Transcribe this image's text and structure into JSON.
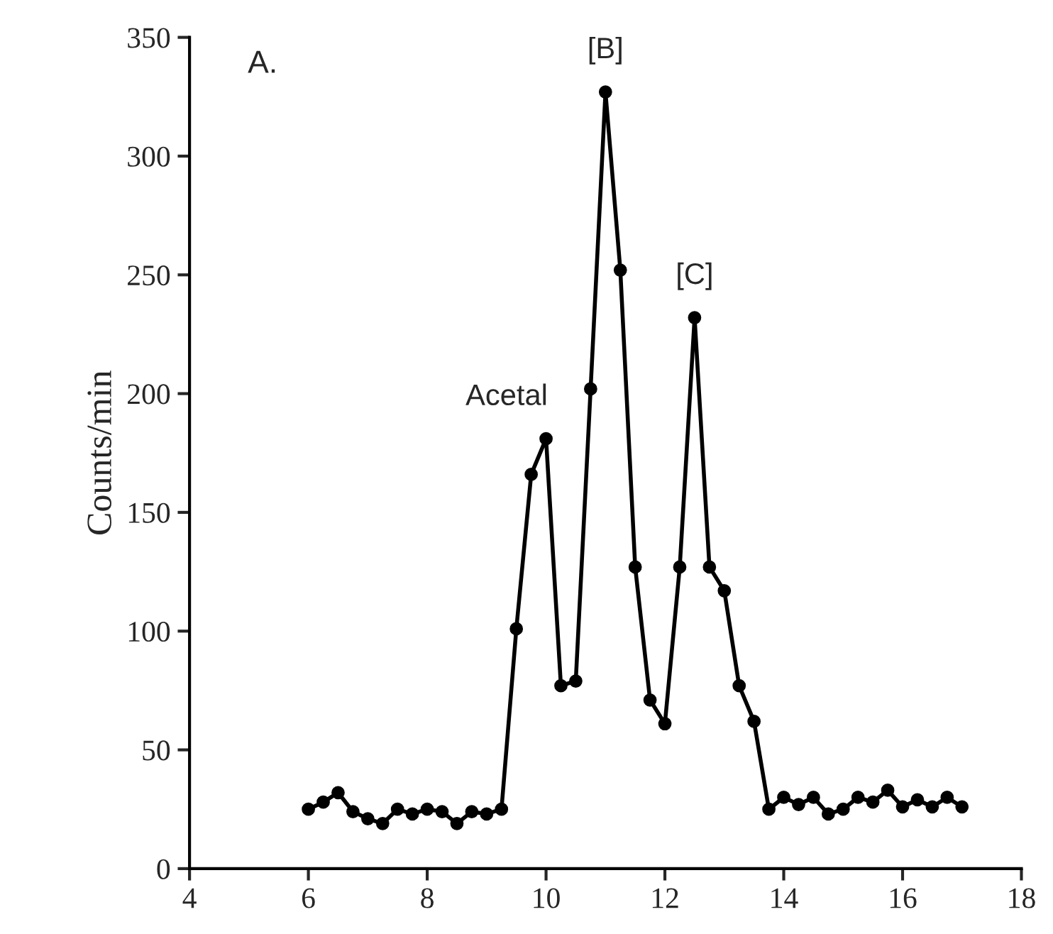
{
  "chart_data": {
    "type": "line",
    "ylabel": "Counts/min",
    "x": [
      6,
      6.25,
      6.5,
      6.75,
      7,
      7.25,
      7.5,
      7.75,
      8,
      8.25,
      8.5,
      8.75,
      9,
      9.25,
      9.5,
      9.75,
      10,
      10.25,
      10.5,
      10.75,
      11,
      11.25,
      11.5,
      11.75,
      12,
      12.25,
      12.5,
      12.75,
      13,
      13.25,
      13.5,
      13.75,
      14,
      14.25,
      14.5,
      14.75,
      15,
      15.25,
      15.5,
      15.75,
      16,
      16.25,
      16.5,
      16.75,
      17
    ],
    "series": [
      {
        "color": "#000000",
        "values": [
          25,
          28,
          32,
          24,
          21,
          19,
          25,
          23,
          25,
          24,
          19,
          24,
          23,
          25,
          101,
          166,
          181,
          77,
          79,
          202,
          327,
          252,
          127,
          71,
          61,
          127,
          232,
          127,
          117,
          77,
          62,
          25,
          30,
          27,
          30,
          23,
          25,
          30,
          28,
          33,
          26,
          29,
          26,
          30,
          26
        ]
      }
    ],
    "xlim": [
      4,
      18
    ],
    "xticks": [
      4,
      6,
      8,
      10,
      12,
      14,
      16,
      18
    ],
    "ylim": [
      0,
      350
    ],
    "yticks": [
      0,
      50,
      100,
      150,
      200,
      250,
      300,
      350
    ],
    "marker": "circle",
    "line_style": "solid",
    "grid": false,
    "legend": false,
    "annotations": [
      "A.",
      {
        "text": "Acetal",
        "x": 10,
        "y": 181
      },
      {
        "text": "[B]",
        "x": 11,
        "y": 327
      },
      {
        "text": "[C]",
        "x": 12.5,
        "y": 232
      }
    ]
  }
}
